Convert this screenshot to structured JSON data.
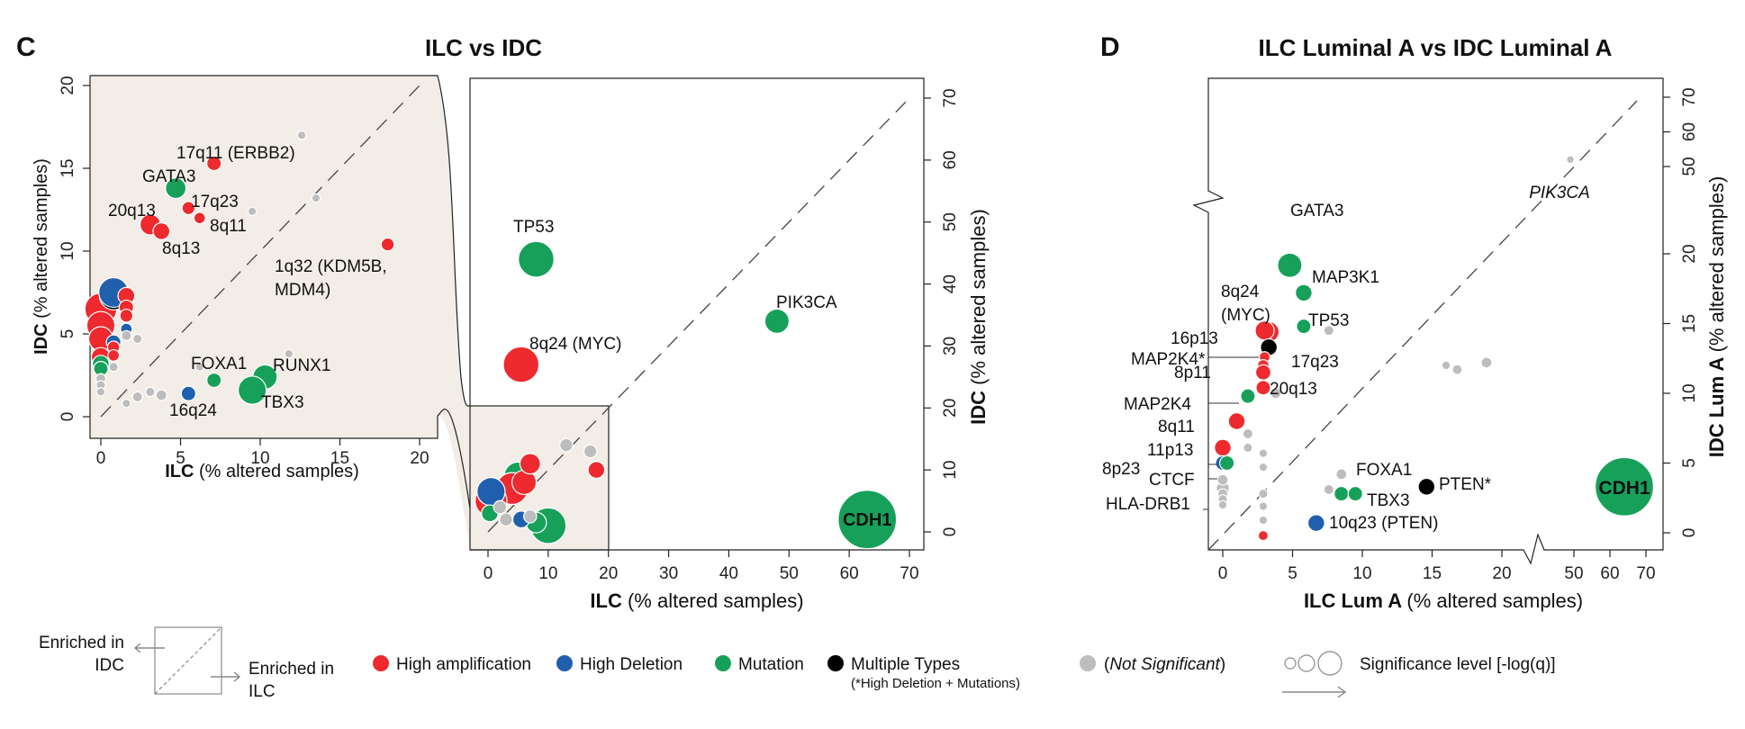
{
  "colors": {
    "amp": "#ee2a2e",
    "del": "#1f5fae",
    "mut": "#17a05a",
    "multi": "#000000",
    "ns": "#bdbdbd",
    "panel_bg": "#f3ede7"
  },
  "chart_data": [
    {
      "panel": "C",
      "type": "scatter",
      "title": "ILC vs IDC",
      "xlabel_bold": "ILC",
      "xlabel_rest": "(% altered samples)",
      "ylabel_bold": "IDC",
      "ylabel_rest": "(% altered samples)",
      "main": {
        "xlim": [
          0,
          70
        ],
        "ylim": [
          0,
          70
        ],
        "xticks": [
          "0",
          "10",
          "20",
          "30",
          "40",
          "50",
          "60",
          "70"
        ],
        "yticks": [
          "0",
          "10",
          "20",
          "30",
          "40",
          "50",
          "60",
          "70"
        ],
        "points": [
          {
            "label": "TP53",
            "x": 8,
            "y": 44,
            "type": "mut",
            "size": 4
          },
          {
            "label": "8q24 (MYC)",
            "x": 5.5,
            "y": 27,
            "type": "amp",
            "size": 4
          },
          {
            "label": "PIK3CA",
            "x": 48,
            "y": 34,
            "type": "mut",
            "size": 2.5
          },
          {
            "label": "CDH1",
            "x": 63,
            "y": 2,
            "type": "mut",
            "size": 7
          },
          {
            "label": "",
            "x": 10,
            "y": 1,
            "type": "mut",
            "size": 4
          },
          {
            "label": "",
            "x": 8,
            "y": 1.5,
            "type": "mut",
            "size": 2
          },
          {
            "label": "",
            "x": 5,
            "y": 9,
            "type": "mut",
            "size": 3
          },
          {
            "label": "",
            "x": 4,
            "y": 7,
            "type": "amp",
            "size": 3.5
          },
          {
            "label": "",
            "x": 6,
            "y": 8,
            "type": "amp",
            "size": 2.5
          },
          {
            "label": "",
            "x": 7,
            "y": 11,
            "type": "amp",
            "size": 2
          },
          {
            "label": "",
            "x": 0.5,
            "y": 5,
            "type": "amp",
            "size": 3.5
          },
          {
            "label": "",
            "x": 0.5,
            "y": 6.5,
            "type": "del",
            "size": 3
          },
          {
            "label": "",
            "x": 0.3,
            "y": 3,
            "type": "mut",
            "size": 1.5
          },
          {
            "label": "",
            "x": 18,
            "y": 10,
            "type": "amp",
            "size": 1.5
          },
          {
            "label": "",
            "x": 5.5,
            "y": 2,
            "type": "del",
            "size": 1.5
          },
          {
            "label": "",
            "x": 7,
            "y": 2.5,
            "type": "ns",
            "size": 1
          },
          {
            "label": "",
            "x": 13,
            "y": 14,
            "type": "ns",
            "size": 1
          },
          {
            "label": "",
            "x": 17,
            "y": 13,
            "type": "ns",
            "size": 1
          },
          {
            "label": "",
            "x": 3,
            "y": 2,
            "type": "ns",
            "size": 1
          },
          {
            "label": "",
            "x": 2,
            "y": 4,
            "type": "ns",
            "size": 1
          }
        ]
      },
      "inset": {
        "xlim": [
          0,
          20
        ],
        "ylim": [
          0,
          20
        ],
        "xticks": [
          "0",
          "5",
          "10",
          "15",
          "20"
        ],
        "yticks": [
          "0",
          "5",
          "10",
          "15",
          "20"
        ],
        "points": [
          {
            "label": "17q11 (ERBB2)",
            "x": 7.1,
            "y": 15.3,
            "type": "amp",
            "size": 1.2
          },
          {
            "label": "GATA3",
            "x": 4.7,
            "y": 13.8,
            "type": "mut",
            "size": 2
          },
          {
            "label": "17q23",
            "x": 5.5,
            "y": 12.6,
            "type": "amp",
            "size": 1
          },
          {
            "label": "8q11",
            "x": 6.2,
            "y": 12.0,
            "type": "amp",
            "size": 0.8
          },
          {
            "label": "20q13",
            "x": 3.1,
            "y": 11.6,
            "type": "amp",
            "size": 2
          },
          {
            "label": "8q13",
            "x": 3.8,
            "y": 11.2,
            "type": "amp",
            "size": 1.5
          },
          {
            "label": "1q32 (KDM5B, MDM4)",
            "x": 18,
            "y": 10.4,
            "type": "amp",
            "size": 1
          },
          {
            "label": "FOXA1",
            "x": 7.1,
            "y": 2.2,
            "type": "mut",
            "size": 1.2
          },
          {
            "label": "RUNX1",
            "x": 10.3,
            "y": 2.4,
            "type": "mut",
            "size": 2.5
          },
          {
            "label": "TBX3",
            "x": 9.5,
            "y": 1.6,
            "type": "mut",
            "size": 3
          },
          {
            "label": "16q24",
            "x": 5.5,
            "y": 1.4,
            "type": "del",
            "size": 1.2
          },
          {
            "label": "",
            "x": 0,
            "y": 6.5,
            "type": "amp",
            "size": 3.5
          },
          {
            "label": "",
            "x": 0,
            "y": 5.5,
            "type": "amp",
            "size": 3
          },
          {
            "label": "",
            "x": 0,
            "y": 4.7,
            "type": "amp",
            "size": 2.5
          },
          {
            "label": "",
            "x": 0,
            "y": 3.6,
            "type": "amp",
            "size": 1.8
          },
          {
            "label": "",
            "x": 0,
            "y": 3.2,
            "type": "mut",
            "size": 1.5
          },
          {
            "label": "",
            "x": 0,
            "y": 2.9,
            "type": "mut",
            "size": 1.2
          },
          {
            "label": "",
            "x": 0.8,
            "y": 7.3,
            "type": "multi",
            "size": 3
          },
          {
            "label": "",
            "x": 0.8,
            "y": 7.5,
            "type": "del",
            "size": 3.2
          },
          {
            "label": "",
            "x": 1.6,
            "y": 7.3,
            "type": "amp",
            "size": 1.5
          },
          {
            "label": "",
            "x": 1.6,
            "y": 6.6,
            "type": "amp",
            "size": 1.2
          },
          {
            "label": "",
            "x": 1.6,
            "y": 6.1,
            "type": "amp",
            "size": 1
          },
          {
            "label": "",
            "x": 1.6,
            "y": 5.3,
            "type": "del",
            "size": 0.8
          },
          {
            "label": "",
            "x": 1.6,
            "y": 4.9,
            "type": "ns",
            "size": 0.6
          },
          {
            "label": "",
            "x": 0.8,
            "y": 4.5,
            "type": "del",
            "size": 1.2
          },
          {
            "label": "",
            "x": 0.8,
            "y": 4.2,
            "type": "amp",
            "size": 0.9
          },
          {
            "label": "",
            "x": 0.8,
            "y": 3.7,
            "type": "amp",
            "size": 0.8
          },
          {
            "label": "",
            "x": 0.8,
            "y": 3.0,
            "type": "ns",
            "size": 0.5
          },
          {
            "label": "",
            "x": 0,
            "y": 2.3,
            "type": "ns",
            "size": 0.6
          },
          {
            "label": "",
            "x": 0,
            "y": 1.9,
            "type": "ns",
            "size": 0.5
          },
          {
            "label": "",
            "x": 0,
            "y": 1.5,
            "type": "ns",
            "size": 0.4
          },
          {
            "label": "",
            "x": 2.3,
            "y": 1.2,
            "type": "ns",
            "size": 0.6
          },
          {
            "label": "",
            "x": 3.1,
            "y": 1.5,
            "type": "ns",
            "size": 0.5
          },
          {
            "label": "",
            "x": 3.8,
            "y": 1.3,
            "type": "ns",
            "size": 0.7
          },
          {
            "label": "",
            "x": 1.6,
            "y": 0.8,
            "type": "ns",
            "size": 0.4
          },
          {
            "label": "",
            "x": 2.3,
            "y": 4.7,
            "type": "ns",
            "size": 0.5
          },
          {
            "label": "",
            "x": 11.8,
            "y": 3.8,
            "type": "ns",
            "size": 0.4
          },
          {
            "label": "",
            "x": 6.2,
            "y": 3.0,
            "type": "ns",
            "size": 0.4
          },
          {
            "label": "",
            "x": 13.5,
            "y": 13.2,
            "type": "ns",
            "size": 0.4
          },
          {
            "label": "",
            "x": 12.6,
            "y": 17.0,
            "type": "ns",
            "size": 0.4
          },
          {
            "label": "",
            "x": 9.5,
            "y": 12.4,
            "type": "ns",
            "size": 0.4
          }
        ]
      }
    },
    {
      "panel": "D",
      "type": "scatter",
      "title": "ILC Luminal A vs IDC Luminal A",
      "xlabel_bold": "ILC Lum A",
      "xlabel_rest": "(% altered samples)",
      "ylabel_bold": "IDC Lum A",
      "ylabel_rest": "(% altered samples)",
      "xlim": [
        0,
        70
      ],
      "ylim": [
        0,
        70
      ],
      "xticks": [
        "0",
        "5",
        "10",
        "15",
        "20",
        "50",
        "60",
        "70"
      ],
      "yticks": [
        "0",
        "5",
        "10",
        "15",
        "20",
        "50",
        "60",
        "70"
      ],
      "axis_break": "20 to 50",
      "points": [
        {
          "label": "GATA3",
          "x": 4.8,
          "y": 21.5,
          "type": "mut",
          "size": 2.5
        },
        {
          "label": "MAP3K1",
          "x": 5.8,
          "y": 17.2,
          "type": "mut",
          "size": 1.5
        },
        {
          "label": "8q24 (MYC)",
          "x": 3.3,
          "y": 14.4,
          "type": "amp",
          "size": 2
        },
        {
          "label": "16p13",
          "x": 3.0,
          "y": 14.5,
          "type": "amp",
          "size": 1.8
        },
        {
          "label": "TP53",
          "x": 5.8,
          "y": 14.8,
          "type": "mut",
          "size": 1.2
        },
        {
          "label": "MAP2K4*",
          "x": 3.3,
          "y": 13.3,
          "type": "multi",
          "size": 1.5
        },
        {
          "label": "8p11",
          "x": 3.0,
          "y": 12.6,
          "type": "amp",
          "size": 0.7
        },
        {
          "label": "17q23",
          "x": 2.9,
          "y": 12.0,
          "type": "amp",
          "size": 0.8
        },
        {
          "label": "",
          "x": 2.9,
          "y": 11.5,
          "type": "amp",
          "size": 1.3
        },
        {
          "label": "20q13",
          "x": 2.9,
          "y": 10.4,
          "type": "amp",
          "size": 1.2
        },
        {
          "label": "MAP2K4",
          "x": 1.8,
          "y": 9.8,
          "type": "mut",
          "size": 1.2
        },
        {
          "label": "8q11",
          "x": 1.0,
          "y": 8.0,
          "type": "amp",
          "size": 1.5
        },
        {
          "label": "11p13",
          "x": 0,
          "y": 6.1,
          "type": "amp",
          "size": 1.5
        },
        {
          "label": "8p23",
          "x": 0,
          "y": 5.0,
          "type": "del",
          "size": 1.2
        },
        {
          "label": "CTCF",
          "x": 0.3,
          "y": 5.0,
          "type": "mut",
          "size": 1.2
        },
        {
          "label": "HLA-DRB1",
          "x": 0,
          "y": 3.2,
          "type": "ns",
          "size": 1
        },
        {
          "label": "FOXA1",
          "x": 8.5,
          "y": 2.8,
          "type": "mut",
          "size": 1.2
        },
        {
          "label": "TBX3",
          "x": 9.5,
          "y": 2.8,
          "type": "mut",
          "size": 1.2
        },
        {
          "label": "PTEN*",
          "x": 14.6,
          "y": 3.3,
          "type": "multi",
          "size": 1.5
        },
        {
          "label": "10q23 (PTEN)",
          "x": 6.7,
          "y": 0.7,
          "type": "del",
          "size": 1.5
        },
        {
          "label": "PIK3CA",
          "x": 49,
          "y": 52,
          "type": "ns",
          "size": 0.3
        },
        {
          "label": "CDH1",
          "x": 64,
          "y": 3.3,
          "type": "mut",
          "size": 7
        },
        {
          "label": "",
          "x": 2.9,
          "y": -0.2,
          "type": "amp",
          "size": 0.6
        },
        {
          "label": "",
          "x": 3.8,
          "y": 10.0,
          "type": "ns",
          "size": 0.7
        },
        {
          "label": "",
          "x": 7.6,
          "y": 14.5,
          "type": "ns",
          "size": 0.6
        },
        {
          "label": "",
          "x": 18.9,
          "y": 12.2,
          "type": "ns",
          "size": 0.7
        },
        {
          "label": "",
          "x": 16.8,
          "y": 11.7,
          "type": "ns",
          "size": 0.6
        },
        {
          "label": "",
          "x": 16.0,
          "y": 12.0,
          "type": "ns",
          "size": 0.4
        },
        {
          "label": "",
          "x": 8.5,
          "y": 4.2,
          "type": "ns",
          "size": 0.7
        },
        {
          "label": "",
          "x": 7.6,
          "y": 3.1,
          "type": "ns",
          "size": 0.6
        },
        {
          "label": "",
          "x": 1.8,
          "y": 7.1,
          "type": "ns",
          "size": 0.6
        },
        {
          "label": "",
          "x": 1.8,
          "y": 6.1,
          "type": "ns",
          "size": 0.5
        },
        {
          "label": "",
          "x": 2.9,
          "y": 5.7,
          "type": "ns",
          "size": 0.4
        },
        {
          "label": "",
          "x": 2.9,
          "y": 4.7,
          "type": "ns",
          "size": 0.4
        },
        {
          "label": "",
          "x": 0,
          "y": 3.8,
          "type": "ns",
          "size": 0.7
        },
        {
          "label": "",
          "x": 0,
          "y": 2.8,
          "type": "ns",
          "size": 0.6
        },
        {
          "label": "",
          "x": 0,
          "y": 2.4,
          "type": "ns",
          "size": 0.5
        },
        {
          "label": "",
          "x": 0,
          "y": 2.0,
          "type": "ns",
          "size": 0.4
        },
        {
          "label": "",
          "x": 2.9,
          "y": 2.8,
          "type": "ns",
          "size": 0.5
        },
        {
          "label": "",
          "x": 2.9,
          "y": 1.9,
          "type": "ns",
          "size": 0.4
        },
        {
          "label": "",
          "x": 2.9,
          "y": 0.9,
          "type": "ns",
          "size": 0.4
        }
      ]
    }
  ],
  "legend": {
    "enriched_idc": "Enriched in\nIDC",
    "enriched_ilc": "Enriched in\nILC",
    "items": [
      {
        "label": "High amplification",
        "type": "amp"
      },
      {
        "label": "High Deletion",
        "type": "del"
      },
      {
        "label": "Mutation",
        "type": "mut"
      },
      {
        "label": "Multiple Types",
        "type": "multi"
      }
    ],
    "multi_note": "(*High Deletion + Mutations)",
    "ns_label": "Not Significant",
    "significance_label": "Significance level [-log(q)]"
  }
}
